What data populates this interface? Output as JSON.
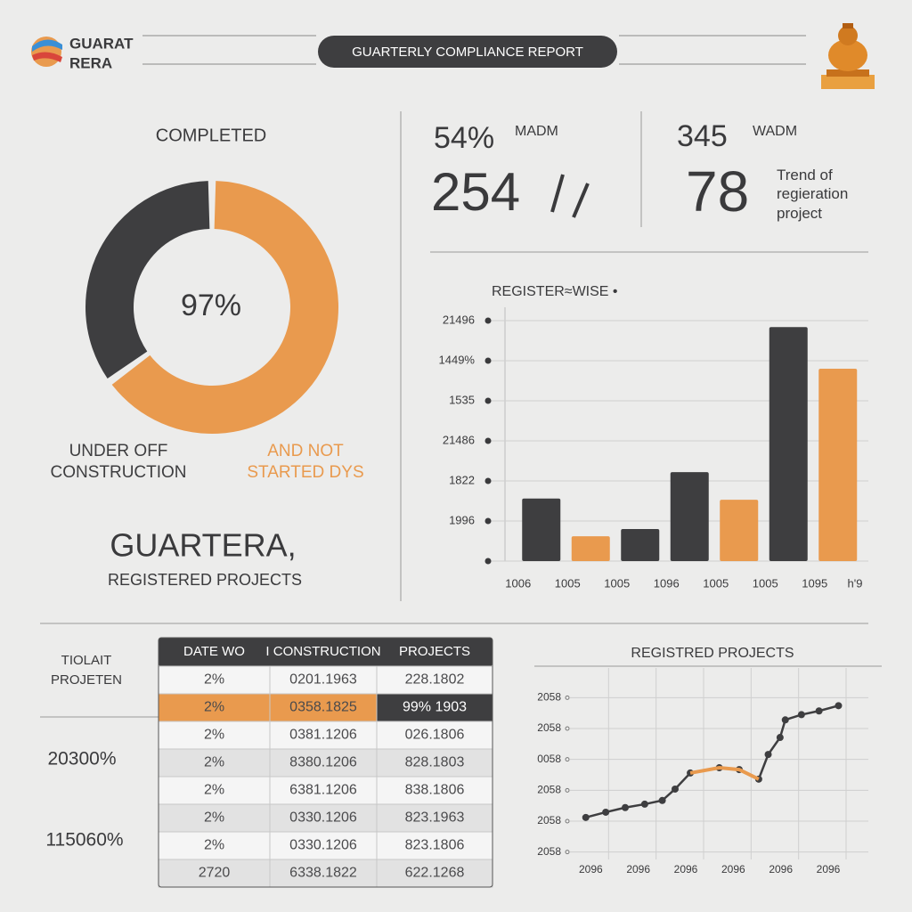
{
  "header": {
    "logo": [
      "GUARAT",
      "RERA"
    ],
    "title": "GUARTERLY COMPLIANCE REPORT"
  },
  "summary": {
    "title": "GUARTERA,",
    "subtitle": "REGISTERED PROJECTS"
  },
  "kpis": [
    {
      "small": "54%",
      "unit": "MADM",
      "big": "254"
    },
    {
      "small": "345",
      "unit": "WADM",
      "big": "78",
      "note": "Trend of\nregieration\nproject"
    }
  ],
  "chart_data": [
    {
      "type": "pie",
      "donut": true,
      "title": "COMPLETED",
      "center_label": "97%",
      "categories": [
        "AND NOT\nSTARTED DYS",
        "UNDER OFF\nCONSTRUCTION"
      ],
      "values": [
        65,
        35
      ],
      "colors": [
        "#e99a4e",
        "#3e3e40"
      ]
    },
    {
      "type": "bar",
      "title": "REGISTER≈WISE •",
      "categories": [
        "1006",
        "1005",
        "1005",
        "1096",
        "1005",
        "1005",
        "1095"
      ],
      "xlabel": "h'9",
      "values": [
        1.56,
        0.62,
        0.8,
        2.22,
        1.53,
        5.84,
        4.8
      ],
      "colors": [
        "#3e3e40",
        "#e99a4e",
        "#3e3e40",
        "#3e3e40",
        "#e99a4e",
        "#3e3e40",
        "#e99a4e"
      ],
      "ylim": [
        0,
        6
      ],
      "yticks": [
        {
          "value": 0,
          "label": ""
        },
        {
          "value": 1,
          "label": "1996"
        },
        {
          "value": 2,
          "label": "1822"
        },
        {
          "value": 3,
          "label": "21486"
        },
        {
          "value": 4,
          "label": "1535"
        },
        {
          "value": 5,
          "label": "1449%"
        },
        {
          "value": 6,
          "label": "21496"
        }
      ],
      "grid": true
    },
    {
      "type": "line",
      "title": "REGISTRED PROJECTS",
      "x": [
        0.52,
        0.94,
        1.35,
        1.76,
        2.13,
        2.4,
        2.72,
        3.33,
        3.75,
        4.16,
        4.36,
        4.61,
        4.72,
        5.06,
        5.43,
        5.84
      ],
      "series": [
        {
          "color": "#3e3e40",
          "values": [
            1.12,
            1.29,
            1.44,
            1.55,
            1.67,
            2.04,
            2.56,
            2.73,
            2.67,
            2.36,
            3.16,
            3.71,
            4.28,
            4.45,
            4.57,
            4.74
          ]
        },
        {
          "color": "#e99a4e",
          "values": [
            null,
            null,
            null,
            null,
            null,
            null,
            2.56,
            2.73,
            2.67,
            2.36,
            null,
            null,
            null,
            null,
            null,
            null
          ]
        }
      ],
      "xlim": [
        0,
        6.3
      ],
      "xticks": [
        {
          "value": 1,
          "label": "2096"
        },
        {
          "value": 2,
          "label": "2096"
        },
        {
          "value": 3,
          "label": "2096"
        },
        {
          "value": 4,
          "label": "2096"
        },
        {
          "value": 5,
          "label": "2096"
        },
        {
          "value": 6,
          "label": "2096"
        }
      ],
      "ylim": [
        -0.5,
        5.5
      ],
      "yticks": [
        {
          "value": 0,
          "label": "2058"
        },
        {
          "value": 1,
          "label": "2058"
        },
        {
          "value": 2,
          "label": "2058"
        },
        {
          "value": 3,
          "label": "0058"
        },
        {
          "value": 4,
          "label": "2058"
        },
        {
          "value": 5,
          "label": "2058"
        }
      ],
      "grid": true
    }
  ],
  "table": {
    "side_labels": [
      "TIOLAIT",
      "PROJETEN"
    ],
    "side_values": [
      "20300%",
      "115060%"
    ],
    "columns": [
      "DATE WO",
      "I CONSTRUCTION",
      "PROJECTS"
    ],
    "highlight_row": 1,
    "rows": [
      [
        "2%",
        "0201.1963",
        "228.1802"
      ],
      [
        "2%",
        "0358.1825",
        "99% 1903"
      ],
      [
        "2%",
        "0381.1206",
        "026.1806"
      ],
      [
        "2%",
        "8380.1206",
        "828.1803"
      ],
      [
        "2%",
        "6381.1206",
        "838.1806"
      ],
      [
        "2%",
        "0330.1206",
        "823.1963"
      ],
      [
        "2%",
        "0330.1206",
        "823.1806"
      ],
      [
        "2720",
        "6338.1822",
        "622.1268"
      ]
    ]
  }
}
